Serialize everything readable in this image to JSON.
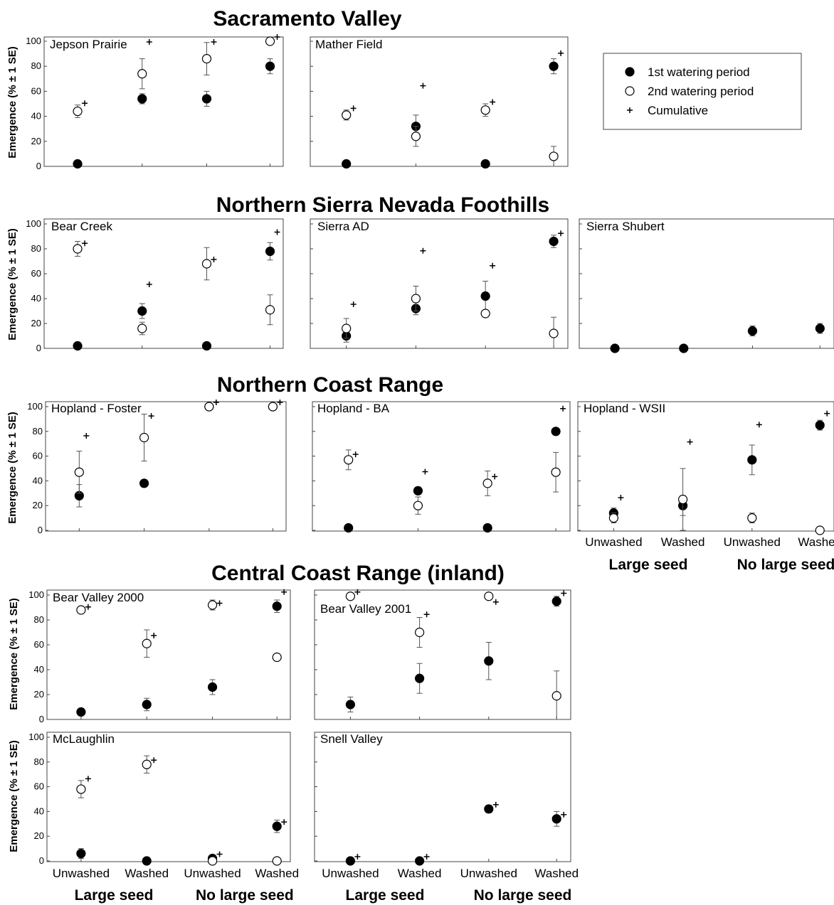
{
  "chart_data": {
    "type": "scatter",
    "ylabel": "Emergence (% ± 1 SE)",
    "ylim": [
      0,
      100
    ],
    "yticks": [
      "0",
      "20",
      "40",
      "60",
      "80",
      "100"
    ],
    "categories": [
      "Unwashed",
      "Washed",
      "Unwashed",
      "Washed"
    ],
    "groups": [
      "Large seed",
      "No large seed"
    ],
    "legend": {
      "position": "top-right",
      "entries": [
        {
          "label": "1st watering period",
          "marker": "filled-circle"
        },
        {
          "label": "2nd watering period",
          "marker": "open-circle"
        },
        {
          "label": "Cumulative",
          "marker": "plus"
        }
      ]
    },
    "regions": [
      {
        "title": "Sacramento Valley"
      },
      {
        "title": "Northern Sierra Nevada Foothills"
      },
      {
        "title": "Northern Coast Range"
      },
      {
        "title": "Central Coast Range (inland)"
      }
    ],
    "panels": [
      {
        "name": "Jepson Prairie",
        "region": "Sacramento Valley",
        "series": [
          {
            "name": "1st watering period",
            "values": [
              2,
              54,
              54,
              80
            ],
            "se": [
              0,
              4,
              6,
              6
            ]
          },
          {
            "name": "2nd watering period",
            "values": [
              44,
              74,
              86,
              100
            ],
            "se": [
              5,
              12,
              13,
              0
            ]
          },
          {
            "name": "Cumulative",
            "values": [
              47,
              96,
              96,
              100
            ]
          }
        ]
      },
      {
        "name": "Mather Field",
        "region": "Sacramento Valley",
        "series": [
          {
            "name": "1st watering period",
            "values": [
              2,
              32,
              2,
              80
            ],
            "se": [
              0,
              9,
              0,
              6
            ]
          },
          {
            "name": "2nd watering period",
            "values": [
              41,
              24,
              45,
              8
            ],
            "se": [
              4,
              8,
              5,
              8
            ]
          },
          {
            "name": "Cumulative",
            "values": [
              43,
              61,
              48,
              87
            ]
          }
        ]
      },
      {
        "name": "Bear Creek",
        "region": "Northern Sierra Nevada Foothills",
        "series": [
          {
            "name": "1st watering period",
            "values": [
              2,
              30,
              2,
              78
            ],
            "se": [
              0,
              6,
              0,
              7
            ]
          },
          {
            "name": "2nd watering period",
            "values": [
              80,
              16,
              68,
              31
            ],
            "se": [
              6,
              5,
              13,
              12
            ]
          },
          {
            "name": "Cumulative",
            "values": [
              81,
              48,
              68,
              90
            ]
          }
        ]
      },
      {
        "name": "Sierra AD",
        "region": "Northern Sierra Nevada Foothills",
        "series": [
          {
            "name": "1st watering period",
            "values": [
              10,
              32,
              42,
              86
            ],
            "se": [
              5,
              5,
              12,
              5
            ]
          },
          {
            "name": "2nd watering period",
            "values": [
              16,
              40,
              28,
              12
            ],
            "se": [
              8,
              10,
              0,
              13
            ]
          },
          {
            "name": "Cumulative",
            "values": [
              32,
              75,
              63,
              89
            ]
          }
        ]
      },
      {
        "name": "Sierra Shubert",
        "region": "Northern Sierra Nevada Foothills",
        "series": [
          {
            "name": "1st watering period",
            "values": [
              0,
              0,
              14,
              16
            ],
            "se": [
              0,
              0,
              4,
              4
            ]
          }
        ]
      },
      {
        "name": "Hopland - Foster",
        "region": "Northern Coast Range",
        "series": [
          {
            "name": "1st watering period",
            "values": [
              28,
              38,
              100,
              100
            ],
            "se": [
              9,
              3,
              0,
              0
            ]
          },
          {
            "name": "2nd watering period",
            "values": [
              47,
              75,
              100,
              100
            ],
            "se": [
              17,
              19,
              0,
              0
            ]
          },
          {
            "name": "Cumulative",
            "values": [
              73,
              89,
              100,
              100
            ]
          }
        ]
      },
      {
        "name": "Hopland - BA",
        "region": "Northern Coast Range",
        "series": [
          {
            "name": "1st watering period",
            "values": [
              2,
              32,
              2,
              80
            ],
            "se": [
              0,
              3,
              0,
              0
            ]
          },
          {
            "name": "2nd watering period",
            "values": [
              57,
              20,
              38,
              47
            ],
            "se": [
              8,
              7,
              10,
              16
            ]
          },
          {
            "name": "Cumulative",
            "values": [
              58,
              44,
              40,
              95
            ]
          }
        ]
      },
      {
        "name": "Hopland - WSII",
        "region": "Northern Coast Range",
        "series": [
          {
            "name": "1st watering period",
            "values": [
              14,
              20,
              57,
              85
            ],
            "se": [
              4,
              8,
              12,
              4
            ]
          },
          {
            "name": "2nd watering period",
            "values": [
              10,
              25,
              10,
              0
            ],
            "se": [
              4,
              25,
              4,
              0
            ]
          },
          {
            "name": "Cumulative",
            "values": [
              23,
              68,
              82,
              91
            ]
          }
        ]
      },
      {
        "name": "Bear Valley 2000",
        "region": "Central Coast Range (inland)",
        "series": [
          {
            "name": "1st watering period",
            "values": [
              6,
              12,
              26,
              91
            ],
            "se": [
              0,
              5,
              6,
              5
            ]
          },
          {
            "name": "2nd watering period",
            "values": [
              88,
              61,
              92,
              50
            ],
            "se": [
              0,
              11,
              4,
              0
            ]
          },
          {
            "name": "Cumulative",
            "values": [
              87,
              64,
              90,
              99
            ]
          }
        ]
      },
      {
        "name": "Bear Valley 2001",
        "region": "Central Coast Range (inland)",
        "series": [
          {
            "name": "1st watering period",
            "values": [
              12,
              33,
              47,
              95
            ],
            "se": [
              6,
              12,
              15,
              4
            ]
          },
          {
            "name": "2nd watering period",
            "values": [
              99,
              70,
              99,
              19
            ],
            "se": [
              0,
              12,
              0,
              20
            ]
          },
          {
            "name": "Cumulative",
            "values": [
              99,
              81,
              91,
              98
            ]
          }
        ]
      },
      {
        "name": "McLaughlin",
        "region": "Central Coast Range (inland)",
        "series": [
          {
            "name": "1st watering period",
            "values": [
              6,
              0,
              2,
              28
            ],
            "se": [
              4,
              0,
              0,
              5
            ]
          },
          {
            "name": "2nd watering period",
            "values": [
              58,
              78,
              0,
              0
            ],
            "se": [
              7,
              7,
              0,
              0
            ]
          },
          {
            "name": "Cumulative",
            "values": [
              63,
              78,
              2,
              28
            ]
          }
        ]
      },
      {
        "name": "Snell Valley",
        "region": "Central Coast Range (inland)",
        "series": [
          {
            "name": "1st watering period",
            "values": [
              0,
              0,
              42,
              34
            ],
            "se": [
              0,
              0,
              3,
              6
            ]
          },
          {
            "name": "Cumulative",
            "values": [
              0,
              0,
              42,
              34
            ]
          }
        ]
      }
    ]
  }
}
